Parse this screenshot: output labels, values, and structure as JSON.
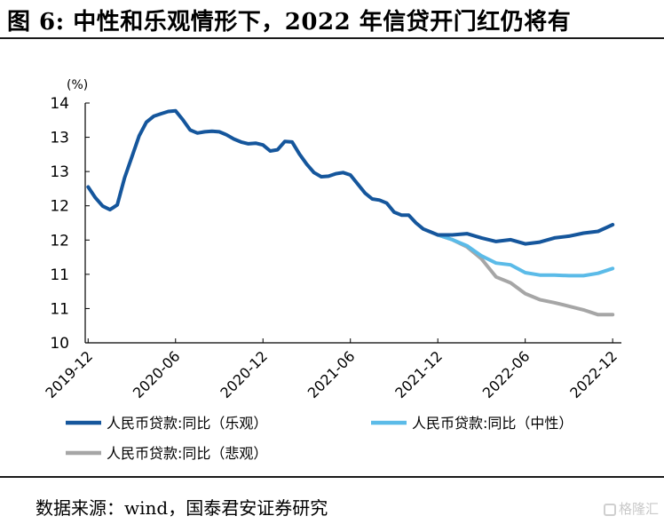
{
  "title": "图  6:  中性和乐观情形下，2022 年信贷开门红仍将有",
  "source": "数据来源：wind，国泰君安证券研究",
  "watermark": "格隆汇",
  "chart_data": {
    "type": "line",
    "unit_label": "(%)",
    "ylim": [
      10,
      14
    ],
    "y_ticks": [
      "14",
      "13",
      "13",
      "12",
      "12",
      "11",
      "11",
      "10"
    ],
    "x_ticks": [
      "2019-12",
      "2020-06",
      "2020-12",
      "2021-06",
      "2021-12",
      "2022-06",
      "2022-12"
    ],
    "x_tick_months": [
      0,
      6,
      12,
      18,
      24,
      30,
      36
    ],
    "x_range": [
      -0.2,
      36.6
    ],
    "grid": false,
    "legend_position": "bottom",
    "series": [
      {
        "name": "人民币贷款:同比（乐观）",
        "color": "#15569c",
        "x": [
          0,
          0.5,
          1,
          1.5,
          2,
          2.5,
          3,
          3.5,
          4,
          4.5,
          5,
          5.5,
          6,
          6.5,
          7,
          7.5,
          8,
          8.5,
          9,
          9.5,
          10,
          10.5,
          11,
          11.5,
          12,
          12.5,
          13,
          13.5,
          14,
          14.5,
          15,
          15.5,
          16,
          16.5,
          17,
          17.5,
          18,
          18.5,
          19,
          19.5,
          20,
          20.5,
          21,
          21.5,
          22,
          22.5,
          23,
          23.5,
          24,
          25,
          26,
          27,
          28,
          29,
          30,
          31,
          32,
          33,
          34,
          35,
          36
        ],
        "values": [
          12.6,
          12.42,
          12.28,
          12.22,
          12.3,
          12.75,
          13.1,
          13.45,
          13.68,
          13.78,
          13.82,
          13.86,
          13.87,
          13.72,
          13.55,
          13.5,
          13.52,
          13.53,
          13.52,
          13.47,
          13.4,
          13.35,
          13.32,
          13.33,
          13.3,
          13.2,
          13.22,
          13.36,
          13.35,
          13.15,
          12.98,
          12.84,
          12.77,
          12.78,
          12.82,
          12.84,
          12.8,
          12.65,
          12.5,
          12.4,
          12.38,
          12.33,
          12.18,
          12.13,
          12.13,
          12.0,
          11.9,
          11.85,
          11.8,
          11.8,
          11.82,
          11.75,
          11.69,
          11.72,
          11.65,
          11.68,
          11.75,
          11.78,
          11.83,
          11.86,
          11.97
        ]
      },
      {
        "name": "人民币贷款:同比（中性）",
        "color": "#5bbbe8",
        "x": [
          24,
          25,
          26,
          27,
          28,
          29,
          30,
          31,
          32,
          33,
          34,
          35,
          36
        ],
        "values": [
          11.8,
          11.72,
          11.62,
          11.45,
          11.33,
          11.3,
          11.17,
          11.13,
          11.13,
          11.12,
          11.12,
          11.16,
          11.24
        ]
      },
      {
        "name": "人民币贷款:同比（悲观）",
        "color": "#a6a6a6",
        "x": [
          24,
          25,
          26,
          27,
          28,
          29,
          30,
          31,
          32,
          33,
          34,
          35,
          36
        ],
        "values": [
          11.8,
          11.72,
          11.6,
          11.4,
          11.1,
          11.0,
          10.82,
          10.72,
          10.67,
          10.61,
          10.55,
          10.47,
          10.47
        ]
      }
    ]
  }
}
